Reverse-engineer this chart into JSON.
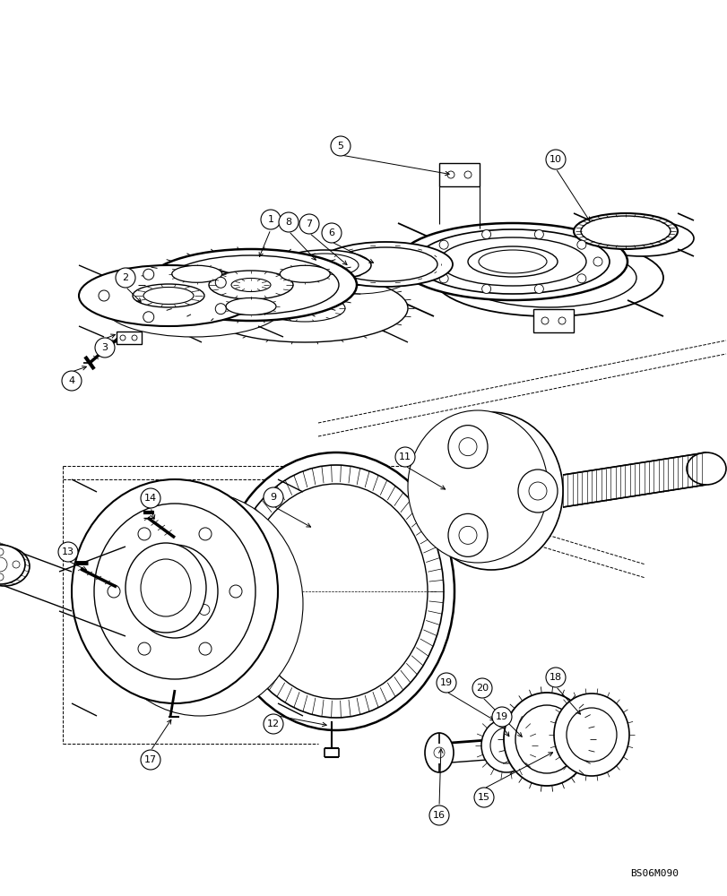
{
  "background_color": "#ffffff",
  "line_color": "#000000",
  "figure_width": 8.12,
  "figure_height": 10.0,
  "dpi": 100,
  "watermark": "BS06M090"
}
